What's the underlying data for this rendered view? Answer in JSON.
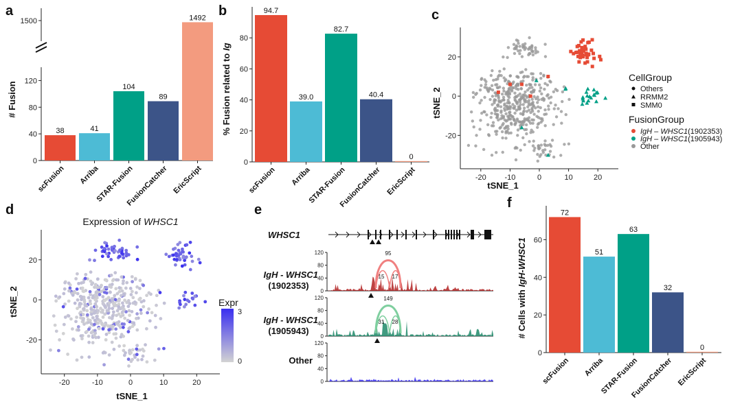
{
  "panels": {
    "a": "a",
    "b": "b",
    "c": "c",
    "d": "d",
    "e": "e",
    "f": "f"
  },
  "colors": {
    "scFusion": "#E64B35",
    "Arriba": "#4DBBD5",
    "STAR-Fusion": "#00A087",
    "FusionCatcher": "#3C5488",
    "EricScript": "#F39B7F",
    "red": "#E64B35",
    "teal": "#00A087",
    "grey": "#999999",
    "exprLow": "#d3d3d3",
    "exprHigh": "#3a2ff0"
  },
  "chart_data": [
    {
      "id": "a",
      "type": "bar",
      "categories": [
        "scFusion",
        "Arriba",
        "STAR-Fusion",
        "FusionCatcher",
        "EricScript"
      ],
      "values": [
        38,
        41,
        104,
        89,
        1492
      ],
      "ylabel": "# Fusion",
      "yticks_lower": [
        "0",
        "40",
        "80",
        "120"
      ],
      "ytick_upper": "1500",
      "axis_break": true
    },
    {
      "id": "b",
      "type": "bar",
      "categories": [
        "scFusion",
        "Arriba",
        "STAR-Fusion",
        "FusionCatcher",
        "EricScript"
      ],
      "values": [
        94.7,
        39.0,
        82.7,
        40.4,
        0
      ],
      "value_labels": [
        "94.7",
        "39.0",
        "82.7",
        "40.4",
        "0"
      ],
      "ylabel_prefix": "% Fusion related to ",
      "ylabel_italic": "Ig",
      "ylim": [
        0,
        100
      ],
      "yticks": [
        "0",
        "20",
        "40",
        "60",
        "80"
      ]
    },
    {
      "id": "c",
      "type": "scatter",
      "xlabel": "tSNE_1",
      "ylabel": "tSNE_2",
      "xlim": [
        -27,
        27
      ],
      "ylim": [
        -37,
        35
      ],
      "xticks": [
        "-20",
        "-10",
        "0",
        "10",
        "20"
      ],
      "yticks": [
        "-20",
        "0",
        "20"
      ],
      "legend_cell": {
        "title": "CellGroup",
        "items": [
          "Others",
          "RRMM2",
          "SMM0"
        ]
      },
      "legend_fusion": {
        "title": "FusionGroup",
        "items": [
          {
            "gene": "IgH – WHSC1",
            "id": "(1902353)"
          },
          {
            "gene": "IgH – WHSC1",
            "id": "(1905943)"
          },
          {
            "gene": "",
            "id": "Other"
          }
        ]
      }
    },
    {
      "id": "d",
      "type": "scatter",
      "title_prefix": "Expression of ",
      "title_italic": "WHSC1",
      "xlabel": "tSNE_1",
      "ylabel": "tSNE_2",
      "xlim": [
        -27,
        27
      ],
      "ylim": [
        -37,
        35
      ],
      "xticks": [
        "-20",
        "-10",
        "0",
        "10",
        "20"
      ],
      "yticks": [
        "-20",
        "0",
        "20"
      ],
      "colorbar": {
        "title": "Expr",
        "max": "3",
        "min": "0"
      }
    },
    {
      "id": "e",
      "type": "area",
      "gene": "WHSC1",
      "tracks": [
        {
          "label": "IgH - WHSC1",
          "sub": "(1902353)",
          "yticks": [
            "120",
            "80",
            "40",
            "0"
          ],
          "arcs": [
            "95",
            "15",
            "17"
          ]
        },
        {
          "label": "IgH - WHSC1",
          "sub": "(1905943)",
          "yticks": [
            "120",
            "80",
            "40",
            "0"
          ],
          "arcs": [
            "149",
            "31",
            "28"
          ]
        },
        {
          "label": "Other",
          "sub": "",
          "yticks": [
            "120",
            "80",
            "40",
            "0"
          ],
          "arcs": []
        }
      ]
    },
    {
      "id": "f",
      "type": "bar",
      "categories": [
        "scFusion",
        "Arriba",
        "STAR-Fusion",
        "FusionCatcher",
        "EricScript"
      ],
      "values": [
        72,
        51,
        63,
        32,
        0
      ],
      "value_labels": [
        "72",
        "51",
        "63",
        "32",
        "0"
      ],
      "ylabel_prefix": "# Cells with ",
      "ylabel_italic": "IgH-WHSC1",
      "ylim": [
        0,
        78
      ],
      "yticks": [
        "0",
        "20",
        "40",
        "60"
      ]
    }
  ]
}
